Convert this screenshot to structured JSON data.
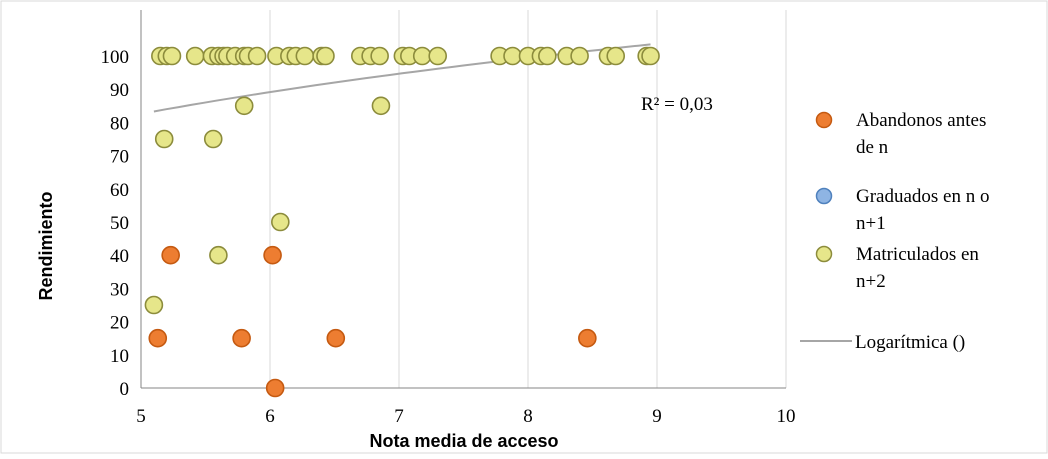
{
  "chart_data": {
    "type": "scatter",
    "xlabel": "Nota media de acceso",
    "ylabel": "Rendimiento",
    "xlim": [
      5,
      10
    ],
    "ylim": [
      0,
      100
    ],
    "x_ticks": [
      "5",
      "6",
      "7",
      "8",
      "9",
      "10"
    ],
    "y_ticks": [
      "0",
      "10",
      "20",
      "30",
      "40",
      "50",
      "60",
      "70",
      "80",
      "90",
      "100"
    ],
    "grid": "vertical",
    "legend_position": "right",
    "r2_label": "R² = 0,03",
    "series": [
      {
        "name": "Abandonos antes de n",
        "legend_lines": [
          "Abandonos antes",
          "de n"
        ],
        "color": "#ED7D31",
        "stroke": "#C55A11",
        "points": [
          [
            5.13,
            15
          ],
          [
            5.23,
            40
          ],
          [
            5.78,
            15
          ],
          [
            6.02,
            40
          ],
          [
            6.04,
            0
          ],
          [
            6.51,
            15
          ],
          [
            8.46,
            15
          ]
        ]
      },
      {
        "name": "Graduados en n o n+1",
        "legend_lines": [
          "Graduados en n o",
          "n+1"
        ],
        "color": "#8EB4E3",
        "stroke": "#4F81BD",
        "points": []
      },
      {
        "name": "Matriculados en n+2",
        "legend_lines": [
          "Matriculados en",
          "n+2"
        ],
        "color": "#E6E68A",
        "stroke": "#8C8C3C",
        "points": [
          [
            5.1,
            25
          ],
          [
            5.18,
            75
          ],
          [
            5.56,
            75
          ],
          [
            5.6,
            40
          ],
          [
            5.8,
            85
          ],
          [
            6.08,
            50
          ],
          [
            6.86,
            85
          ],
          [
            5.15,
            100
          ],
          [
            5.2,
            100
          ],
          [
            5.24,
            100
          ],
          [
            5.42,
            100
          ],
          [
            5.55,
            100
          ],
          [
            5.6,
            100
          ],
          [
            5.64,
            100
          ],
          [
            5.67,
            100
          ],
          [
            5.73,
            100
          ],
          [
            5.8,
            100
          ],
          [
            5.83,
            100
          ],
          [
            5.9,
            100
          ],
          [
            6.05,
            100
          ],
          [
            6.15,
            100
          ],
          [
            6.2,
            100
          ],
          [
            6.27,
            100
          ],
          [
            6.4,
            100
          ],
          [
            6.43,
            100
          ],
          [
            6.7,
            100
          ],
          [
            6.78,
            100
          ],
          [
            6.85,
            100
          ],
          [
            7.03,
            100
          ],
          [
            7.08,
            100
          ],
          [
            7.18,
            100
          ],
          [
            7.3,
            100
          ],
          [
            7.78,
            100
          ],
          [
            7.88,
            100
          ],
          [
            8.0,
            100
          ],
          [
            8.1,
            100
          ],
          [
            8.15,
            100
          ],
          [
            8.3,
            100
          ],
          [
            8.4,
            100
          ],
          [
            8.62,
            100
          ],
          [
            8.68,
            100
          ],
          [
            8.92,
            100
          ],
          [
            8.95,
            100
          ]
        ]
      }
    ],
    "trendline": {
      "name": "Logarítmica ()",
      "type": "logarithmic",
      "color": "#A6A6A6",
      "x_range": [
        5.1,
        8.95
      ],
      "a": 35.9,
      "b": 24.8
    }
  }
}
